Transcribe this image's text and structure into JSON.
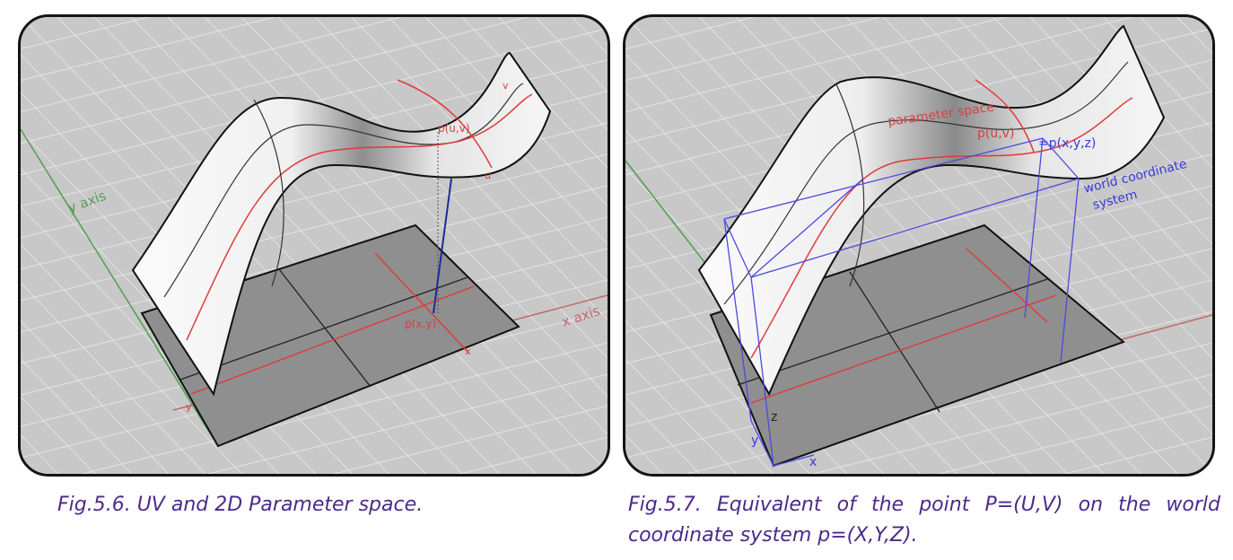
{
  "figure_left": {
    "labels": {
      "y_axis": "y axis",
      "x_axis": "x axis",
      "p_uv": "p(u,v)",
      "p_xy": "p(x,y)",
      "u": "u",
      "v": "v",
      "x": "x",
      "y": "y"
    },
    "caption": "Fig.5.6. UV and 2D Parameter space."
  },
  "figure_right": {
    "labels": {
      "parameter_space": "parameter space",
      "p_uv": "p(u,v)",
      "p_xyz": "=p(x,y,z)",
      "world_line1": "world coordinate",
      "world_line2": "system",
      "x": "x",
      "y": "y",
      "z": "z"
    },
    "caption": "Fig.5.7. Equivalent of the point P=(U,V) on the world coordinate system p=(X,Y,Z)."
  },
  "colors": {
    "background_grid": "#c9c9c9",
    "surface_white": "#f8f8f8",
    "surface_shadow": "#9a9a9a",
    "parameter_red": "#e03a3a",
    "world_blue": "#3a3ad8",
    "y_axis_green": "#4e9e4e",
    "caption_purple": "#4b2a8c"
  }
}
